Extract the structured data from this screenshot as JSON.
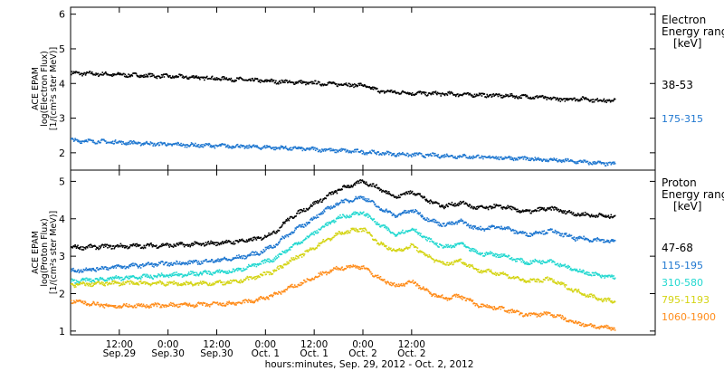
{
  "chart_data": [
    {
      "type": "scatter",
      "panel": "electron",
      "ylabel_lines": [
        "ACE EPAM",
        "log(Electron Flux)",
        "[1/(cm²s ster MeV)]"
      ],
      "ylim": [
        1.5,
        6.2
      ],
      "yticks": [
        2,
        3,
        4,
        5,
        6
      ],
      "legend_title_lines": [
        "Electron",
        "Energy range",
        "[keV]"
      ],
      "series": [
        {
          "name": "38-53",
          "color": "#000000",
          "x": [
            0,
            10,
            20,
            30,
            40,
            50,
            60,
            68,
            72,
            76,
            84,
            92,
            100,
            108,
            116,
            120,
            126,
            130,
            134
          ],
          "y": [
            4.32,
            4.28,
            4.24,
            4.2,
            4.14,
            4.08,
            4.03,
            3.99,
            3.96,
            3.8,
            3.74,
            3.72,
            3.69,
            3.66,
            3.62,
            3.56,
            3.58,
            3.53,
            3.53
          ]
        },
        {
          "name": "175-315",
          "color": "#1f77d0",
          "x": [
            0,
            10,
            20,
            30,
            40,
            50,
            60,
            70,
            80,
            90,
            100,
            110,
            120,
            130,
            134
          ],
          "y": [
            2.38,
            2.33,
            2.28,
            2.24,
            2.21,
            2.17,
            2.12,
            2.06,
            1.98,
            1.94,
            1.9,
            1.86,
            1.8,
            1.72,
            1.69
          ]
        }
      ]
    },
    {
      "type": "scatter",
      "panel": "proton",
      "ylabel_lines": [
        "ACE EPAM",
        "log(Proton Flux)",
        "[1/(cm²s ster MeV)]"
      ],
      "ylim": [
        0.9,
        5.3
      ],
      "yticks": [
        1,
        2,
        3,
        4,
        5
      ],
      "legend_title_lines": [
        "Proton",
        "Energy range",
        "[keV]"
      ],
      "series": [
        {
          "name": "47-68",
          "color": "#000000",
          "x": [
            0,
            10,
            20,
            30,
            40,
            46,
            50,
            54,
            58,
            62,
            66,
            70,
            72,
            76,
            80,
            84,
            88,
            92,
            96,
            100,
            106,
            112,
            118,
            124,
            130,
            134
          ],
          "y": [
            3.25,
            3.28,
            3.3,
            3.33,
            3.4,
            3.48,
            3.65,
            4.05,
            4.3,
            4.55,
            4.8,
            4.95,
            5.02,
            4.82,
            4.6,
            4.75,
            4.5,
            4.35,
            4.45,
            4.3,
            4.35,
            4.2,
            4.3,
            4.15,
            4.1,
            4.08
          ]
        },
        {
          "name": "115-195",
          "color": "#1f77d0",
          "x": [
            0,
            10,
            20,
            30,
            40,
            46,
            50,
            54,
            58,
            62,
            66,
            70,
            72,
            76,
            80,
            84,
            88,
            92,
            96,
            100,
            106,
            112,
            118,
            124,
            130,
            134
          ],
          "y": [
            2.62,
            2.72,
            2.8,
            2.85,
            2.95,
            3.1,
            3.3,
            3.65,
            3.9,
            4.2,
            4.45,
            4.55,
            4.6,
            4.3,
            4.1,
            4.25,
            4.0,
            3.85,
            3.95,
            3.75,
            3.8,
            3.6,
            3.7,
            3.5,
            3.45,
            3.4
          ]
        },
        {
          "name": "310-580",
          "color": "#22d8d0",
          "x": [
            0,
            10,
            20,
            30,
            40,
            46,
            50,
            54,
            58,
            62,
            66,
            70,
            72,
            76,
            80,
            84,
            88,
            92,
            96,
            100,
            106,
            112,
            118,
            124,
            130,
            134
          ],
          "y": [
            2.35,
            2.42,
            2.48,
            2.55,
            2.62,
            2.8,
            2.95,
            3.25,
            3.5,
            3.8,
            4.05,
            4.15,
            4.18,
            3.85,
            3.6,
            3.75,
            3.45,
            3.25,
            3.35,
            3.1,
            3.05,
            2.85,
            2.9,
            2.65,
            2.5,
            2.45
          ]
        },
        {
          "name": "795-1193",
          "color": "#d4d414",
          "x": [
            0,
            10,
            20,
            30,
            40,
            46,
            50,
            54,
            58,
            62,
            66,
            70,
            72,
            76,
            80,
            84,
            88,
            92,
            96,
            100,
            106,
            112,
            118,
            124,
            130,
            134
          ],
          "y": [
            2.25,
            2.3,
            2.3,
            2.28,
            2.32,
            2.48,
            2.62,
            2.9,
            3.12,
            3.4,
            3.62,
            3.72,
            3.75,
            3.35,
            3.15,
            3.3,
            3.0,
            2.8,
            2.9,
            2.65,
            2.55,
            2.35,
            2.4,
            2.1,
            1.88,
            1.8
          ]
        },
        {
          "name": "1060-1900",
          "color": "#ff8c1a",
          "x": [
            0,
            10,
            20,
            30,
            40,
            46,
            50,
            54,
            58,
            62,
            66,
            70,
            72,
            76,
            80,
            84,
            88,
            92,
            96,
            100,
            106,
            112,
            118,
            124,
            130,
            134
          ],
          "y": [
            1.82,
            1.68,
            1.7,
            1.72,
            1.75,
            1.85,
            1.98,
            2.18,
            2.35,
            2.55,
            2.7,
            2.75,
            2.72,
            2.42,
            2.22,
            2.35,
            2.05,
            1.9,
            1.95,
            1.72,
            1.62,
            1.45,
            1.48,
            1.25,
            1.12,
            1.1
          ]
        }
      ]
    }
  ],
  "x_axis": {
    "xlim": [
      0,
      144
    ],
    "ticks": [
      {
        "x": 12,
        "time": "12:00",
        "date": "Sep.29"
      },
      {
        "x": 24,
        "time": "0:00",
        "date": "Sep.30"
      },
      {
        "x": 36,
        "time": "12:00",
        "date": "Sep.30"
      },
      {
        "x": 48,
        "time": "0:00",
        "date": "Oct. 1"
      },
      {
        "x": 60,
        "time": "12:00",
        "date": "Oct. 1"
      },
      {
        "x": 72,
        "time": "0:00",
        "date": "Oct. 2"
      },
      {
        "x": 84,
        "time": "12:00",
        "date": "Oct. 2"
      }
    ],
    "label": "hours:minutes, Sep. 29, 2012 - Oct. 2, 2012"
  }
}
